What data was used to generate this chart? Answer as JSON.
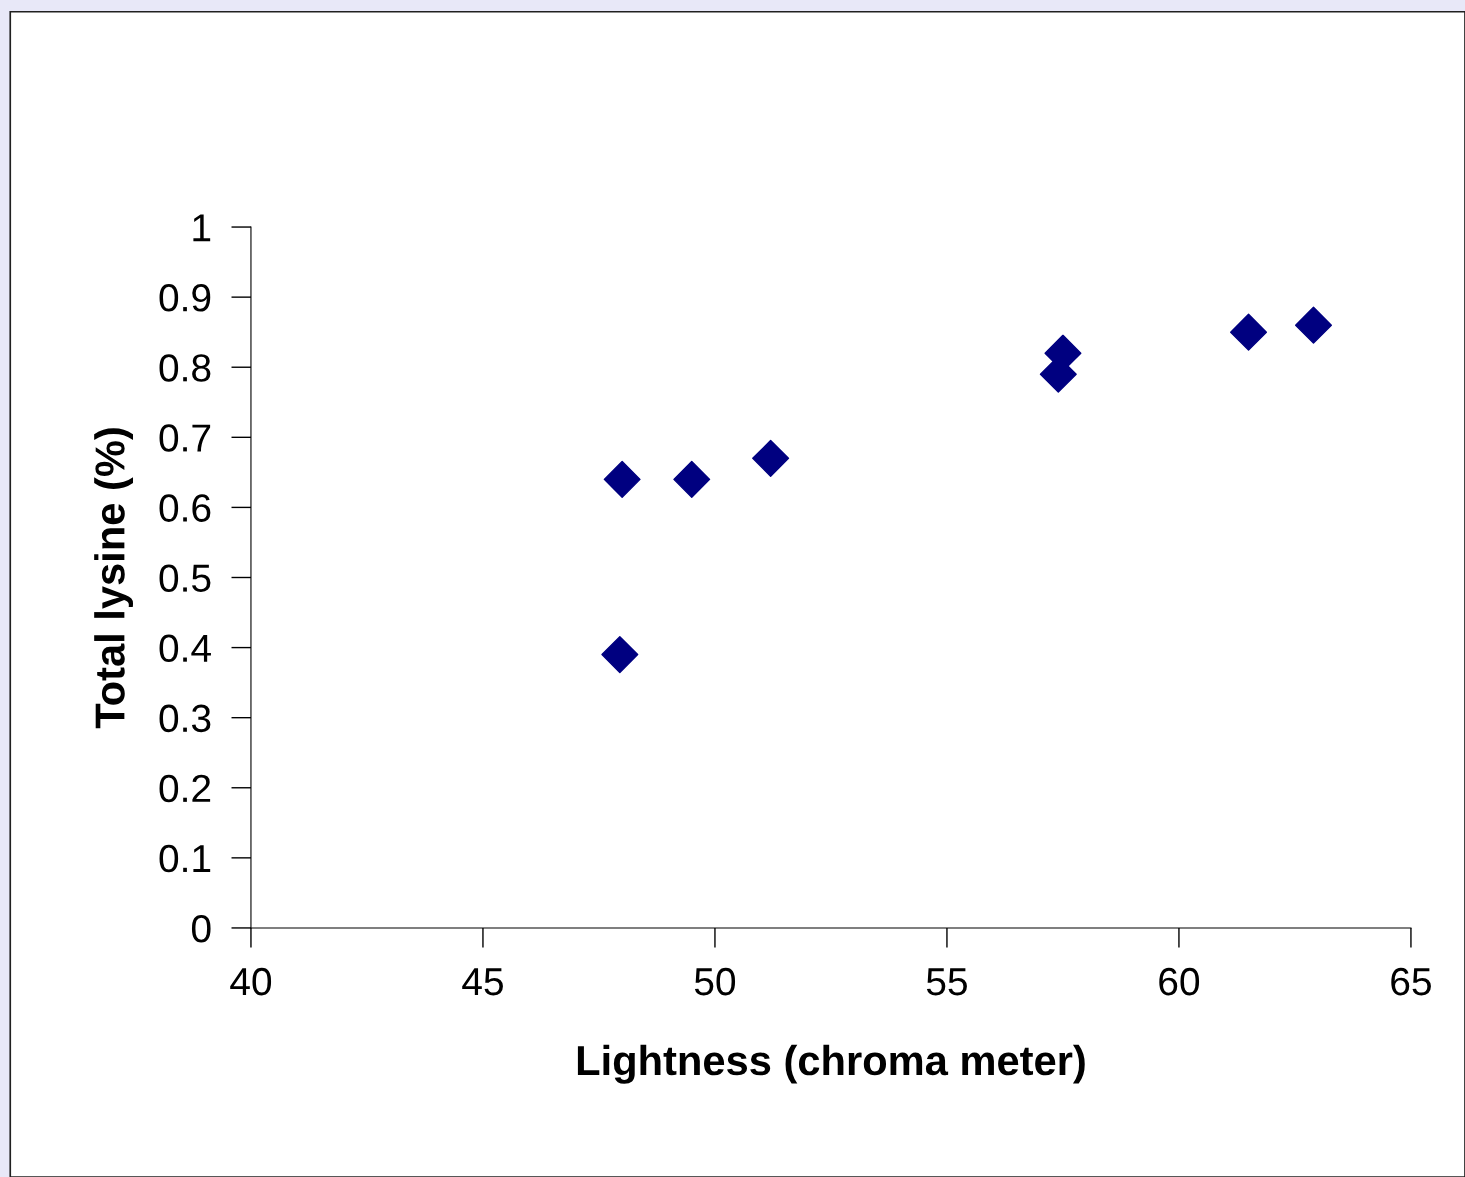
{
  "chart_data": {
    "type": "scatter",
    "xlabel": "Lightness (chroma meter)",
    "ylabel": "Total lysine (%)",
    "x": [
      47.95,
      48.0,
      49.5,
      51.2,
      57.4,
      57.5,
      61.5,
      62.9
    ],
    "series": [
      {
        "color": "#000080",
        "values": [
          0.39,
          0.64,
          0.64,
          0.67,
          0.79,
          0.82,
          0.85,
          0.86
        ]
      }
    ],
    "xlim": [
      40,
      65
    ],
    "xticks": [
      40,
      45,
      50,
      55,
      60,
      65
    ],
    "ylim": [
      0,
      1
    ],
    "yticks": [
      0,
      0.1,
      0.2,
      0.3,
      0.4,
      0.5,
      0.6,
      0.7,
      0.8,
      0.9,
      1
    ],
    "marker": "diamond",
    "grid": false,
    "legend": false
  }
}
